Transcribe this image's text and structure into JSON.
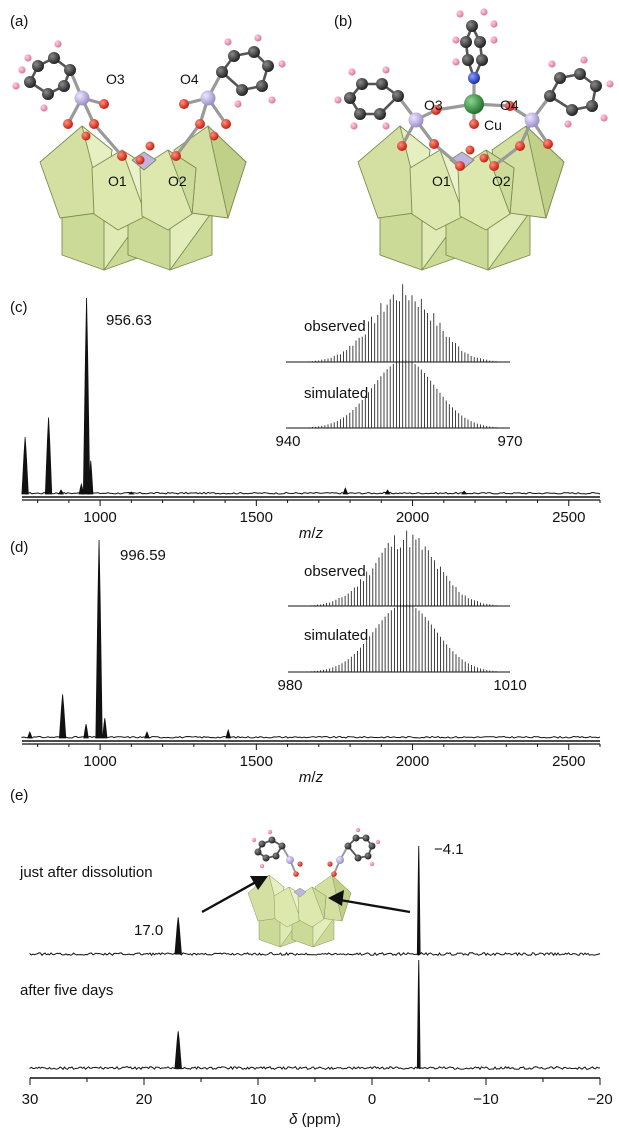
{
  "panels": {
    "a": {
      "label": "(a)",
      "atom_labels": [
        "O3",
        "O4",
        "O1",
        "O2"
      ]
    },
    "b": {
      "label": "(b)",
      "atom_labels": [
        "O3",
        "O4",
        "O1",
        "O2",
        "Cu"
      ]
    },
    "c": {
      "label": "(c)",
      "peak_label": "956.63",
      "inset_observed": "observed",
      "inset_simulated": "simulated",
      "inset_ticks": [
        "940",
        "970"
      ]
    },
    "d": {
      "label": "(d)",
      "peak_label": "996.59",
      "inset_observed": "observed",
      "inset_simulated": "simulated",
      "inset_ticks": [
        "980",
        "1010"
      ]
    },
    "e": {
      "label": "(e)",
      "trace1_label": "just after dissolution",
      "trace2_label": "after five days",
      "peak1_label": "17.0",
      "peak2_label": "−4.1"
    }
  },
  "chart_data": [
    {
      "type": "line",
      "panel": "c",
      "xlabel": "m/z",
      "xlim": [
        750,
        2600
      ],
      "xticks": [
        1000,
        1500,
        2000,
        2500
      ],
      "x": [
        760,
        835,
        875,
        940,
        956.63,
        970,
        1100,
        1785,
        1920,
        2165
      ],
      "values": [
        0.29,
        0.39,
        0.02,
        0.05,
        1.0,
        0.17,
        0.01,
        0.03,
        0.02,
        0.015
      ]
    },
    {
      "type": "line",
      "panel": "d",
      "xlabel": "m/z",
      "xlim": [
        750,
        2600
      ],
      "xticks": [
        1000,
        1500,
        2000,
        2500
      ],
      "x": [
        775,
        880,
        955,
        996.59,
        1015,
        1150,
        1410
      ],
      "values": [
        0.03,
        0.22,
        0.07,
        1.0,
        0.1,
        0.03,
        0.04
      ]
    },
    {
      "type": "line",
      "panel": "e",
      "xlabel": "δ (ppm)",
      "xlim": [
        30,
        -20
      ],
      "xticks": [
        30,
        20,
        10,
        0,
        -10,
        -20
      ],
      "series": [
        {
          "x": [
            17.0,
            -4.1
          ],
          "values": [
            0.34,
            1.0
          ]
        },
        {
          "x": [
            17.0,
            -4.1
          ],
          "values": [
            0.34,
            1.0
          ]
        }
      ]
    }
  ],
  "colors": {
    "polyhedra": "#d6e3a6",
    "polyhedra_edge": "#8a9a5a",
    "oxygen": "#e03020",
    "carbon": "#333333",
    "hydrogen": "#e88aac",
    "phosphorus": "#b3a6d8",
    "copper": "#2f8a3a",
    "nitrogen": "#2340c8"
  }
}
